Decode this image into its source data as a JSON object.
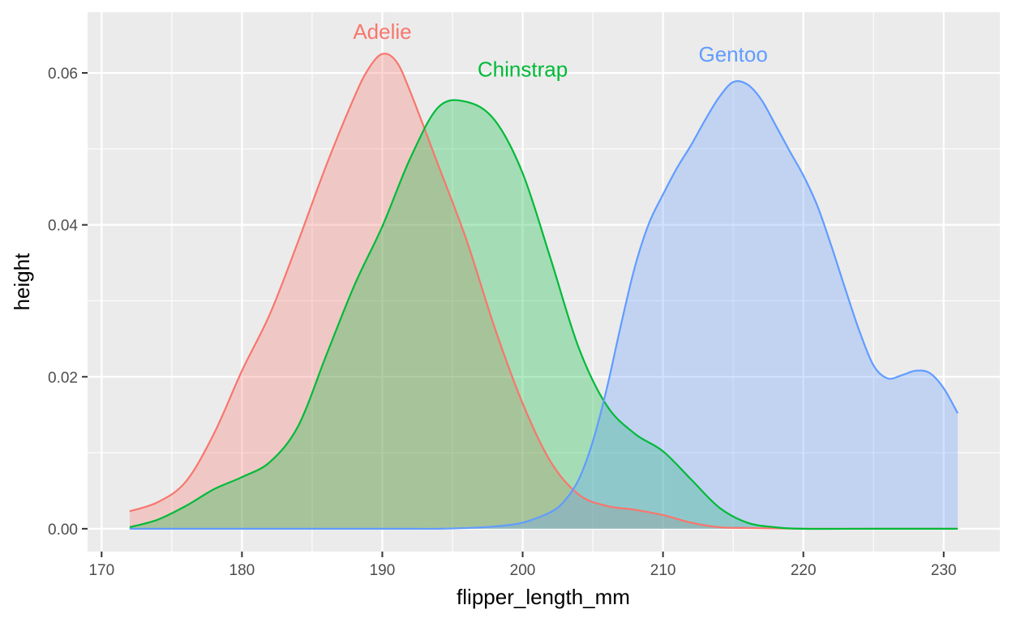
{
  "chart_data": {
    "type": "area",
    "xlabel": "flipper_length_mm",
    "ylabel": "height",
    "xlim": [
      169,
      234
    ],
    "ylim": [
      -0.003,
      0.068
    ],
    "x_ticks": [
      170,
      180,
      190,
      200,
      210,
      220,
      230
    ],
    "x_tick_labels": [
      "170",
      "180",
      "190",
      "200",
      "210",
      "220",
      "230"
    ],
    "y_ticks": [
      0.0,
      0.02,
      0.04,
      0.06
    ],
    "y_tick_labels": [
      "0.00",
      "0.02",
      "0.04",
      "0.06"
    ],
    "grid": true,
    "legend": "none",
    "background": "#ebebeb",
    "series": [
      {
        "name": "Adelie",
        "color": "#f8766d",
        "label_at": [
          190,
          0.0645
        ],
        "x": [
          172,
          174,
          176,
          178,
          180,
          182,
          184,
          186,
          188,
          189,
          190,
          191,
          192,
          194,
          196,
          198,
          200,
          202,
          204,
          206,
          208,
          210,
          212,
          214,
          216,
          220,
          225,
          231
        ],
        "y": [
          0.0023,
          0.0035,
          0.0062,
          0.0125,
          0.0208,
          0.0283,
          0.0378,
          0.0478,
          0.0568,
          0.0605,
          0.0625,
          0.0615,
          0.0575,
          0.0478,
          0.038,
          0.0265,
          0.0165,
          0.0088,
          0.0045,
          0.003,
          0.0025,
          0.0018,
          0.0008,
          0.0002,
          0.0001,
          0.0,
          0.0,
          0.0
        ]
      },
      {
        "name": "Chinstrap",
        "color": "#00ba38",
        "label_at": [
          200,
          0.0595
        ],
        "x": [
          172,
          174,
          176,
          178,
          180,
          182,
          184,
          186,
          188,
          190,
          192,
          194,
          196,
          198,
          200,
          202,
          204,
          206,
          208,
          210,
          212,
          214,
          216,
          218,
          220,
          225,
          231
        ],
        "y": [
          0.0002,
          0.0012,
          0.003,
          0.0052,
          0.0068,
          0.0088,
          0.0135,
          0.0228,
          0.032,
          0.0398,
          0.0488,
          0.0555,
          0.0562,
          0.0538,
          0.0468,
          0.0355,
          0.0238,
          0.0162,
          0.0125,
          0.0102,
          0.0065,
          0.0028,
          0.0008,
          0.0002,
          0.0,
          0.0,
          0.0
        ]
      },
      {
        "name": "Gentoo",
        "color": "#619cff",
        "label_at": [
          215,
          0.0615
        ],
        "x": [
          172,
          180,
          190,
          194,
          196,
          198,
          200,
          202,
          203,
          204,
          205,
          206,
          207,
          208,
          209,
          210,
          211,
          212,
          213,
          214,
          215,
          216,
          217,
          218,
          219,
          220,
          221,
          222,
          223,
          224,
          225,
          226,
          227,
          228,
          229,
          230,
          231
        ],
        "y": [
          0.0,
          0.0,
          0.0,
          0.0,
          0.0001,
          0.0003,
          0.0008,
          0.0022,
          0.0037,
          0.0065,
          0.0115,
          0.0185,
          0.0268,
          0.0345,
          0.0402,
          0.044,
          0.0475,
          0.0505,
          0.0538,
          0.0568,
          0.0588,
          0.0585,
          0.0565,
          0.0532,
          0.0498,
          0.0465,
          0.0425,
          0.0372,
          0.0315,
          0.026,
          0.0215,
          0.0198,
          0.0202,
          0.0208,
          0.0205,
          0.0185,
          0.0152
        ]
      }
    ]
  }
}
